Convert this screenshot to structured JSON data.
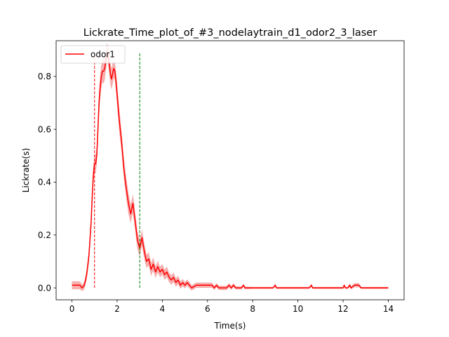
{
  "chart_data": {
    "type": "line",
    "title": "Lickrate_Time_plot_of_#3_nodelaytrain_d1_odor2_3_laser",
    "xlabel": "Time(s)",
    "ylabel": "Lickrate(s)",
    "xlim": [
      -0.7,
      14.7
    ],
    "ylim": [
      -0.045,
      0.935
    ],
    "xticks": [
      0,
      2,
      4,
      6,
      8,
      10,
      12,
      14
    ],
    "xtick_labels": [
      "0",
      "2",
      "4",
      "6",
      "8",
      "10",
      "12",
      "14"
    ],
    "yticks": [
      0.0,
      0.2,
      0.4,
      0.6,
      0.8
    ],
    "ytick_labels": [
      "0.0",
      "0.2",
      "0.4",
      "0.6",
      "0.8"
    ],
    "grid": false,
    "legend": {
      "position": "top-left",
      "entries": [
        "odor1"
      ]
    },
    "vlines": [
      {
        "x": 1.0,
        "ymin": 0.0,
        "ymax": 0.89,
        "color": "#ff0000",
        "style": "dashed"
      },
      {
        "x": 3.0,
        "ymin": 0.0,
        "ymax": 0.89,
        "color": "#008000",
        "style": "dashed"
      }
    ],
    "series": [
      {
        "name": "odor1",
        "color": "#ff0000",
        "band_color": "#f4a0a0",
        "x": [
          0,
          0.2,
          0.35,
          0.45,
          0.55,
          0.65,
          0.75,
          0.85,
          0.9,
          0.95,
          1.0,
          1.05,
          1.1,
          1.15,
          1.2,
          1.25,
          1.3,
          1.35,
          1.4,
          1.45,
          1.5,
          1.55,
          1.6,
          1.65,
          1.7,
          1.75,
          1.8,
          1.85,
          1.9,
          1.95,
          2.0,
          2.05,
          2.1,
          2.2,
          2.3,
          2.4,
          2.5,
          2.6,
          2.7,
          2.8,
          2.9,
          3.0,
          3.1,
          3.2,
          3.3,
          3.4,
          3.5,
          3.6,
          3.7,
          3.8,
          3.9,
          4.0,
          4.1,
          4.2,
          4.3,
          4.4,
          4.5,
          4.6,
          4.7,
          4.8,
          4.9,
          5.0,
          5.1,
          5.2,
          5.3,
          5.5,
          5.7,
          6.0,
          6.2,
          6.3,
          6.4,
          6.5,
          6.7,
          6.85,
          6.95,
          7.05,
          7.15,
          7.25,
          7.35,
          7.5,
          7.6,
          7.65,
          7.7,
          7.8,
          8.0,
          8.5,
          8.9,
          9.0,
          9.05,
          9.15,
          9.5,
          10.0,
          10.5,
          10.6,
          10.65,
          10.75,
          11.0,
          11.5,
          12.0,
          12.05,
          12.1,
          12.2,
          12.3,
          12.35,
          12.5,
          12.7,
          12.8,
          13.0,
          13.5,
          14.0
        ],
        "y": [
          0.01,
          0.01,
          0.01,
          0.0,
          0.01,
          0.05,
          0.12,
          0.25,
          0.35,
          0.43,
          0.47,
          0.47,
          0.5,
          0.6,
          0.7,
          0.76,
          0.8,
          0.82,
          0.82,
          0.83,
          0.86,
          0.89,
          0.88,
          0.85,
          0.81,
          0.79,
          0.81,
          0.83,
          0.82,
          0.78,
          0.73,
          0.68,
          0.63,
          0.55,
          0.45,
          0.38,
          0.32,
          0.28,
          0.32,
          0.25,
          0.18,
          0.15,
          0.19,
          0.14,
          0.1,
          0.11,
          0.07,
          0.09,
          0.06,
          0.08,
          0.06,
          0.07,
          0.05,
          0.06,
          0.04,
          0.03,
          0.04,
          0.02,
          0.03,
          0.01,
          0.02,
          0.01,
          0.02,
          0.01,
          0.0,
          0.01,
          0.01,
          0.01,
          0.01,
          0.0,
          0.01,
          0.0,
          0.0,
          0.0,
          0.01,
          0.0,
          0.01,
          0.0,
          0.0,
          0.0,
          0.01,
          0.0,
          0.0,
          0.0,
          0.0,
          0.0,
          0.0,
          0.01,
          0.0,
          0.0,
          0.0,
          0.0,
          0.0,
          0.01,
          0.0,
          0.0,
          0.0,
          0.0,
          0.0,
          0.01,
          0.0,
          0.0,
          0.01,
          0.0,
          0.01,
          0.01,
          0.0,
          0.0,
          0.0,
          0.0
        ],
        "err": [
          0.015,
          0.015,
          0.015,
          0.012,
          0.015,
          0.02,
          0.025,
          0.03,
          0.035,
          0.035,
          0.035,
          0.035,
          0.035,
          0.04,
          0.045,
          0.045,
          0.045,
          0.045,
          0.045,
          0.045,
          0.04,
          0.035,
          0.035,
          0.04,
          0.04,
          0.04,
          0.04,
          0.035,
          0.035,
          0.04,
          0.045,
          0.045,
          0.045,
          0.04,
          0.04,
          0.04,
          0.04,
          0.035,
          0.035,
          0.035,
          0.035,
          0.03,
          0.03,
          0.03,
          0.025,
          0.025,
          0.025,
          0.025,
          0.022,
          0.022,
          0.02,
          0.02,
          0.02,
          0.02,
          0.018,
          0.018,
          0.018,
          0.016,
          0.016,
          0.014,
          0.014,
          0.012,
          0.012,
          0.012,
          0.01,
          0.01,
          0.01,
          0.01,
          0.01,
          0.008,
          0.008,
          0.008,
          0.008,
          0.008,
          0.008,
          0.008,
          0.008,
          0.006,
          0.006,
          0.006,
          0.006,
          0.005,
          0.005,
          0.005,
          0.004,
          0.004,
          0.004,
          0.006,
          0.004,
          0.004,
          0.004,
          0.004,
          0.004,
          0.006,
          0.004,
          0.004,
          0.004,
          0.004,
          0.004,
          0.006,
          0.004,
          0.004,
          0.008,
          0.006,
          0.008,
          0.008,
          0.004,
          0.004,
          0.004,
          0.004
        ]
      }
    ]
  }
}
